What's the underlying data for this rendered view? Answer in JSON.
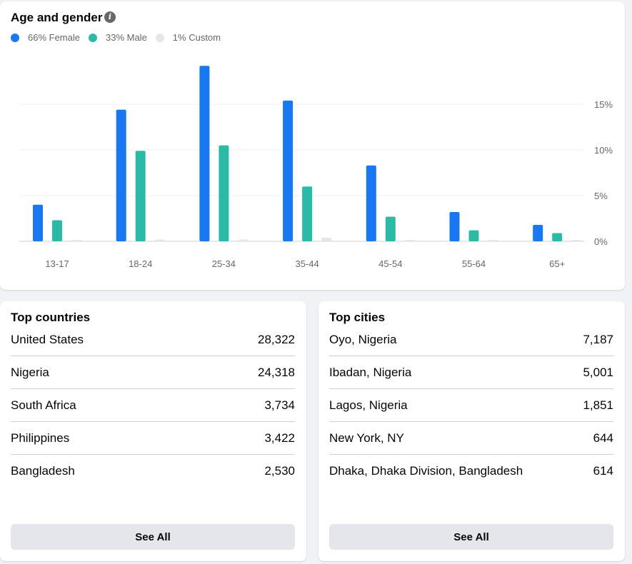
{
  "age_gender": {
    "title": "Age and gender",
    "legend": [
      {
        "label": "66% Female",
        "color": "#1877f2"
      },
      {
        "label": "33% Male",
        "color": "#2abba7"
      },
      {
        "label": "1% Custom",
        "color": "#e4e6eb"
      }
    ]
  },
  "chart_data": {
    "type": "bar",
    "categories": [
      "13-17",
      "18-24",
      "25-34",
      "35-44",
      "45-54",
      "55-64",
      "65+"
    ],
    "series": [
      {
        "name": "66% Female",
        "color": "#1877f2",
        "values": [
          4.0,
          14.4,
          19.2,
          15.4,
          8.3,
          3.2,
          1.8
        ]
      },
      {
        "name": "33% Male",
        "color": "#2abba7",
        "values": [
          2.3,
          9.9,
          10.5,
          6.0,
          2.7,
          1.2,
          0.9
        ]
      },
      {
        "name": "1% Custom",
        "color": "#e4e6eb",
        "values": [
          0.1,
          0.2,
          0.2,
          0.4,
          0.1,
          0.0,
          0.0
        ]
      }
    ],
    "yticks": [
      "0%",
      "5%",
      "10%",
      "15%"
    ],
    "ytick_values": [
      0,
      5,
      10,
      15
    ],
    "ylim": [
      0,
      20
    ],
    "grid": true,
    "y_axis_position": "right"
  },
  "top_countries": {
    "title": "Top countries",
    "rows": [
      {
        "name": "United States",
        "value": "28,322"
      },
      {
        "name": "Nigeria",
        "value": "24,318"
      },
      {
        "name": "South Africa",
        "value": "3,734"
      },
      {
        "name": "Philippines",
        "value": "3,422"
      },
      {
        "name": "Bangladesh",
        "value": "2,530"
      }
    ],
    "button": "See All"
  },
  "top_cities": {
    "title": "Top cities",
    "rows": [
      {
        "name": "Oyo, Nigeria",
        "value": "7,187"
      },
      {
        "name": "Ibadan, Nigeria",
        "value": "5,001"
      },
      {
        "name": "Lagos, Nigeria",
        "value": "1,851"
      },
      {
        "name": "New York, NY",
        "value": "644"
      },
      {
        "name": "Dhaka, Dhaka Division, Bangladesh",
        "value": "614"
      }
    ],
    "button": "See All"
  }
}
